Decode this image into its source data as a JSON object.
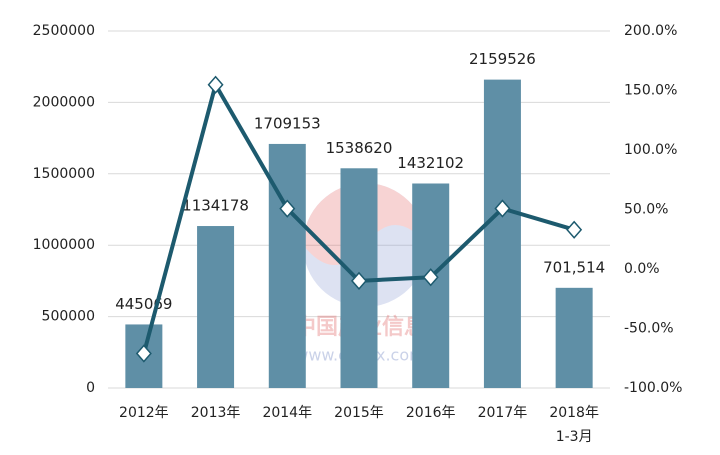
{
  "chart_data": {
    "type": "bar-line",
    "categories": [
      [
        "2012年"
      ],
      [
        "2013年"
      ],
      [
        "2014年"
      ],
      [
        "2015年"
      ],
      [
        "2016年"
      ],
      [
        "2017年"
      ],
      [
        "2018年",
        "1-3月"
      ]
    ],
    "series": [
      {
        "type": "bar",
        "color": "#5f8fa6",
        "values": [
          445069,
          1134178,
          1709153,
          1538620,
          1432102,
          2159526,
          701514
        ],
        "value_labels": [
          "445069",
          "1134178",
          "1709153",
          "1538620",
          "1432102",
          "2159526",
          "701,514"
        ]
      },
      {
        "type": "line",
        "axis": "y2",
        "color": "#1d5a6e",
        "values": [
          -71,
          154.8,
          50.7,
          -10.0,
          -6.9,
          50.8,
          33
        ]
      }
    ],
    "ylim": [
      0,
      2500000
    ],
    "yticks": [
      0,
      500000,
      1000000,
      1500000,
      2000000,
      2500000
    ],
    "y2lim": [
      -100,
      200
    ],
    "y2ticks": [
      {
        "value": -100,
        "label": "-100.0%"
      },
      {
        "value": -50,
        "label": "-50.0%"
      },
      {
        "value": 0,
        "label": "0.0%"
      },
      {
        "value": 50,
        "label": "50.0%"
      },
      {
        "value": 100,
        "label": "100.0%"
      },
      {
        "value": 150,
        "label": "150.0%"
      },
      {
        "value": 200,
        "label": "200.0%"
      }
    ],
    "grid": true,
    "watermark": [
      "中国产业信息",
      "www.chyxx.com"
    ]
  }
}
